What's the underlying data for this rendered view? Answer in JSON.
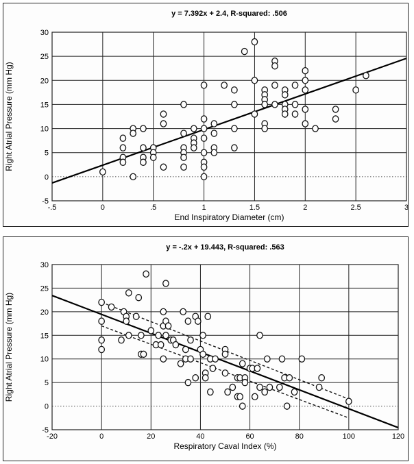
{
  "chart_data": [
    {
      "type": "scatter",
      "title": "y  =  7.392x  +  2.4,   R-squared:  .506",
      "xlabel": "End Inspiratory Diameter (cm)",
      "ylabel": "Right Atrial Pressure (mm Hg)",
      "xlim": [
        -0.5,
        3
      ],
      "ylim": [
        -5,
        30
      ],
      "xticks": [
        "-.5",
        "0",
        ".5",
        "1",
        "1.5",
        "2",
        "2.5",
        "3"
      ],
      "xtick_values": [
        -0.5,
        0,
        0.5,
        1,
        1.5,
        2,
        2.5,
        3
      ],
      "yticks": [
        "-5",
        "0",
        "5",
        "10",
        "15",
        "20",
        "25",
        "30"
      ],
      "ytick_values": [
        -5,
        0,
        5,
        10,
        15,
        20,
        25,
        30
      ],
      "grid": true,
      "line": {
        "slope": 7.392,
        "intercept": 2.4
      },
      "points": [
        [
          0,
          1
        ],
        [
          0.2,
          8
        ],
        [
          0.2,
          6
        ],
        [
          0.2,
          4
        ],
        [
          0.2,
          3
        ],
        [
          0.3,
          10
        ],
        [
          0.3,
          9
        ],
        [
          0.3,
          0
        ],
        [
          0.4,
          10
        ],
        [
          0.4,
          6
        ],
        [
          0.4,
          4
        ],
        [
          0.4,
          3
        ],
        [
          0.5,
          6
        ],
        [
          0.5,
          5
        ],
        [
          0.5,
          4
        ],
        [
          0.6,
          13
        ],
        [
          0.6,
          11
        ],
        [
          0.6,
          2
        ],
        [
          0.8,
          15
        ],
        [
          0.8,
          9
        ],
        [
          0.8,
          6
        ],
        [
          0.8,
          5
        ],
        [
          0.8,
          4
        ],
        [
          0.8,
          2
        ],
        [
          0.9,
          10
        ],
        [
          0.9,
          8
        ],
        [
          0.9,
          7
        ],
        [
          0.9,
          6
        ],
        [
          1.0,
          19
        ],
        [
          1.0,
          12
        ],
        [
          1.0,
          10
        ],
        [
          1.0,
          8
        ],
        [
          1.0,
          5
        ],
        [
          1.0,
          3
        ],
        [
          1.0,
          2
        ],
        [
          1.0,
          0
        ],
        [
          1.1,
          11
        ],
        [
          1.1,
          9
        ],
        [
          1.1,
          6
        ],
        [
          1.1,
          5
        ],
        [
          1.2,
          19
        ],
        [
          1.3,
          18
        ],
        [
          1.3,
          15
        ],
        [
          1.3,
          10
        ],
        [
          1.3,
          6
        ],
        [
          1.4,
          26
        ],
        [
          1.5,
          28
        ],
        [
          1.5,
          20
        ],
        [
          1.5,
          13
        ],
        [
          1.6,
          18
        ],
        [
          1.6,
          17
        ],
        [
          1.6,
          16
        ],
        [
          1.6,
          15
        ],
        [
          1.6,
          11
        ],
        [
          1.6,
          10
        ],
        [
          1.7,
          24
        ],
        [
          1.7,
          23
        ],
        [
          1.7,
          19
        ],
        [
          1.7,
          15
        ],
        [
          1.8,
          18
        ],
        [
          1.8,
          17
        ],
        [
          1.8,
          15
        ],
        [
          1.8,
          14
        ],
        [
          1.8,
          13
        ],
        [
          1.9,
          19
        ],
        [
          1.9,
          15
        ],
        [
          1.9,
          13
        ],
        [
          2.0,
          22
        ],
        [
          2.0,
          20
        ],
        [
          2.0,
          18
        ],
        [
          2.0,
          14
        ],
        [
          2.0,
          11
        ],
        [
          2.1,
          10
        ],
        [
          2.3,
          14
        ],
        [
          2.3,
          12
        ],
        [
          2.5,
          18
        ],
        [
          2.6,
          21
        ]
      ]
    },
    {
      "type": "scatter",
      "title": "y  =  -.2x  +  19.443,   R-squared:  .563",
      "xlabel": "Respiratory Caval Index (%)",
      "ylabel": "Right Atrial Pressure (mm Hg)",
      "xlim": [
        -20,
        120
      ],
      "ylim": [
        -5,
        30
      ],
      "xticks": [
        "-20",
        "0",
        "20",
        "40",
        "60",
        "80",
        "100",
        "120"
      ],
      "xtick_values": [
        -20,
        0,
        20,
        40,
        60,
        80,
        100,
        120
      ],
      "yticks": [
        "-5",
        "0",
        "5",
        "10",
        "15",
        "20",
        "25",
        "30"
      ],
      "ytick_values": [
        -5,
        0,
        5,
        10,
        15,
        20,
        25,
        30
      ],
      "grid": true,
      "line": {
        "slope": -0.2,
        "intercept": 19.443
      },
      "ci_band": {
        "x": [
          0,
          100
        ],
        "upper": [
          22,
          1.5
        ],
        "lower": [
          17,
          -2.5
        ]
      },
      "points": [
        [
          0,
          22
        ],
        [
          0,
          18
        ],
        [
          0,
          14
        ],
        [
          0,
          12
        ],
        [
          4,
          21
        ],
        [
          8,
          14
        ],
        [
          9,
          20
        ],
        [
          10,
          19
        ],
        [
          10,
          18
        ],
        [
          11,
          15
        ],
        [
          11,
          24
        ],
        [
          14,
          19
        ],
        [
          15,
          23
        ],
        [
          16,
          15
        ],
        [
          16,
          11
        ],
        [
          17,
          11
        ],
        [
          18,
          28
        ],
        [
          20,
          16
        ],
        [
          22,
          13
        ],
        [
          23,
          15
        ],
        [
          24,
          13
        ],
        [
          25,
          20
        ],
        [
          25,
          17
        ],
        [
          25,
          10
        ],
        [
          26,
          26
        ],
        [
          26,
          18
        ],
        [
          26,
          15
        ],
        [
          27,
          17
        ],
        [
          28,
          14
        ],
        [
          29,
          14
        ],
        [
          30,
          13
        ],
        [
          32,
          9
        ],
        [
          33,
          20
        ],
        [
          34,
          10
        ],
        [
          34,
          12
        ],
        [
          35,
          18
        ],
        [
          35,
          5
        ],
        [
          36,
          10
        ],
        [
          36,
          14
        ],
        [
          38,
          19
        ],
        [
          38,
          6
        ],
        [
          39,
          18
        ],
        [
          40,
          12
        ],
        [
          41,
          15
        ],
        [
          41,
          11
        ],
        [
          42,
          7
        ],
        [
          42,
          6
        ],
        [
          43,
          19
        ],
        [
          44,
          10
        ],
        [
          44,
          3
        ],
        [
          45,
          8
        ],
        [
          46,
          10
        ],
        [
          50,
          12
        ],
        [
          50,
          11
        ],
        [
          50,
          7
        ],
        [
          51,
          3
        ],
        [
          53,
          4
        ],
        [
          55,
          6
        ],
        [
          55,
          2
        ],
        [
          56,
          2
        ],
        [
          56,
          6
        ],
        [
          57,
          9
        ],
        [
          57,
          0
        ],
        [
          58,
          6
        ],
        [
          58,
          5
        ],
        [
          60,
          8
        ],
        [
          61,
          8
        ],
        [
          62,
          2
        ],
        [
          63,
          8
        ],
        [
          64,
          4
        ],
        [
          64,
          15
        ],
        [
          66,
          3
        ],
        [
          67,
          10
        ],
        [
          68,
          4
        ],
        [
          72,
          4
        ],
        [
          73,
          10
        ],
        [
          74,
          6
        ],
        [
          75,
          0
        ],
        [
          76,
          6
        ],
        [
          78,
          3
        ],
        [
          81,
          10
        ],
        [
          88,
          4
        ],
        [
          89,
          6
        ],
        [
          100,
          1
        ]
      ]
    }
  ]
}
